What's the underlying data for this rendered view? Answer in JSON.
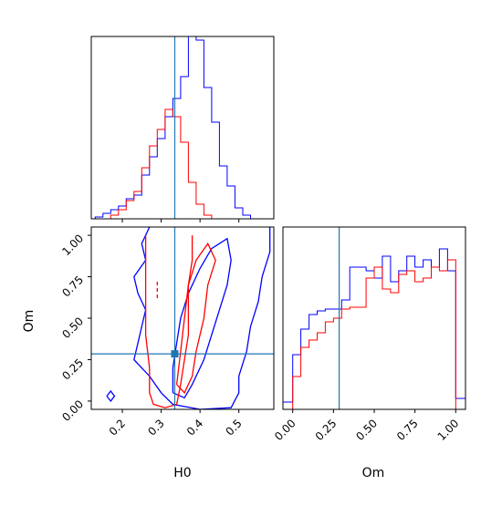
{
  "chart_data": {
    "type": "corner",
    "parameters": [
      "H0",
      "Om"
    ],
    "truth": {
      "H0": 0.335,
      "Om": 0.285
    },
    "truth_color": "#1f77b4",
    "series_colors": {
      "blue": "#0000ff",
      "red": "#ff0000"
    },
    "grid": false,
    "panels": [
      {
        "id": "H0-marginal",
        "type": "histogram",
        "parameter": "H0",
        "xlim": [
          0.12,
          0.59
        ],
        "ylim": [
          0,
          1.0
        ],
        "bin_edges": [
          0.11,
          0.13,
          0.15,
          0.17,
          0.19,
          0.21,
          0.23,
          0.25,
          0.27,
          0.29,
          0.31,
          0.33,
          0.35,
          0.37,
          0.39,
          0.41,
          0.43,
          0.45,
          0.47,
          0.49,
          0.51,
          0.53,
          0.55,
          0.57
        ],
        "series": [
          {
            "color": "blue",
            "values": [
              0,
              0.01,
              0.03,
              0.05,
              0.07,
              0.11,
              0.13,
              0.24,
              0.34,
              0.44,
              0.56,
              0.66,
              0.78,
              1.0,
              0.98,
              0.72,
              0.53,
              0.29,
              0.18,
              0.06,
              0.02,
              0,
              0
            ]
          },
          {
            "color": "red",
            "values": [
              0,
              0,
              0,
              0.02,
              0.05,
              0.1,
              0.15,
              0.28,
              0.4,
              0.49,
              0.6,
              0.56,
              0.42,
              0.2,
              0.08,
              0.02,
              0,
              0,
              0,
              0,
              0,
              0,
              0
            ]
          }
        ]
      },
      {
        "id": "H0-Om-joint",
        "type": "contour",
        "x_parameter": "H0",
        "y_parameter": "Om",
        "xlim": [
          0.12,
          0.59
        ],
        "ylim": [
          -0.05,
          1.05
        ],
        "x_ticks": [
          "0.2",
          "0.3",
          "0.4",
          "0.5"
        ],
        "x_tick_values": [
          0.2,
          0.3,
          0.4,
          0.5
        ],
        "y_ticks": [
          "0.00",
          "0.25",
          "0.50",
          "0.75",
          "1.00"
        ],
        "y_tick_values": [
          0.0,
          0.25,
          0.5,
          0.75,
          1.0
        ],
        "xlabel": "H0",
        "ylabel": "Om",
        "contours": [
          {
            "color": "blue",
            "level": "outer",
            "points": [
              [
                0.27,
                1.05
              ],
              [
                0.25,
                0.95
              ],
              [
                0.26,
                0.85
              ],
              [
                0.23,
                0.75
              ],
              [
                0.24,
                0.65
              ],
              [
                0.26,
                0.55
              ],
              [
                0.25,
                0.45
              ],
              [
                0.24,
                0.35
              ],
              [
                0.23,
                0.25
              ],
              [
                0.27,
                0.15
              ],
              [
                0.3,
                0.05
              ],
              [
                0.33,
                -0.02
              ],
              [
                0.4,
                -0.05
              ],
              [
                0.48,
                -0.04
              ],
              [
                0.5,
                0.05
              ],
              [
                0.5,
                0.15
              ],
              [
                0.52,
                0.3
              ],
              [
                0.53,
                0.45
              ],
              [
                0.55,
                0.6
              ],
              [
                0.56,
                0.75
              ],
              [
                0.58,
                0.9
              ],
              [
                0.58,
                1.05
              ]
            ]
          },
          {
            "color": "blue",
            "level": "inner",
            "points": [
              [
                0.33,
                0.05
              ],
              [
                0.33,
                0.2
              ],
              [
                0.34,
                0.35
              ],
              [
                0.35,
                0.5
              ],
              [
                0.37,
                0.65
              ],
              [
                0.4,
                0.8
              ],
              [
                0.43,
                0.92
              ],
              [
                0.47,
                0.98
              ],
              [
                0.48,
                0.85
              ],
              [
                0.47,
                0.7
              ],
              [
                0.45,
                0.55
              ],
              [
                0.43,
                0.4
              ],
              [
                0.41,
                0.25
              ],
              [
                0.38,
                0.1
              ],
              [
                0.36,
                0.02
              ],
              [
                0.33,
                0.05
              ]
            ]
          },
          {
            "color": "blue",
            "level": "dot",
            "points": [
              [
                0.16,
                0.03
              ],
              [
                0.17,
                0.06
              ],
              [
                0.18,
                0.03
              ],
              [
                0.17,
                0.0
              ],
              [
                0.16,
                0.03
              ]
            ]
          },
          {
            "color": "red",
            "level": "outer",
            "points": [
              [
                0.26,
                1.0
              ],
              [
                0.26,
                0.8
              ],
              [
                0.26,
                0.6
              ],
              [
                0.26,
                0.4
              ],
              [
                0.27,
                0.2
              ],
              [
                0.27,
                0.05
              ],
              [
                0.28,
                -0.02
              ],
              [
                0.31,
                -0.04
              ],
              [
                0.34,
                -0.02
              ],
              [
                0.35,
                0.1
              ],
              [
                0.36,
                0.25
              ],
              [
                0.37,
                0.4
              ],
              [
                0.37,
                0.55
              ],
              [
                0.37,
                0.7
              ],
              [
                0.38,
                0.85
              ],
              [
                0.38,
                1.0
              ]
            ]
          },
          {
            "color": "red",
            "level": "inner",
            "points": [
              [
                0.34,
                0.1
              ],
              [
                0.35,
                0.3
              ],
              [
                0.36,
                0.5
              ],
              [
                0.37,
                0.7
              ],
              [
                0.39,
                0.85
              ],
              [
                0.42,
                0.95
              ],
              [
                0.44,
                0.85
              ],
              [
                0.42,
                0.7
              ],
              [
                0.41,
                0.5
              ],
              [
                0.39,
                0.3
              ],
              [
                0.38,
                0.15
              ],
              [
                0.36,
                0.05
              ],
              [
                0.34,
                0.1
              ]
            ]
          }
        ]
      },
      {
        "id": "Om-marginal",
        "type": "histogram",
        "parameter": "Om",
        "xlim": [
          -0.06,
          1.06
        ],
        "ylim": [
          0,
          1.0
        ],
        "x_ticks": [
          "0.00",
          "0.25",
          "0.50",
          "0.75",
          "1.00"
        ],
        "x_tick_values": [
          0.0,
          0.25,
          0.5,
          0.75,
          1.0
        ],
        "xlabel": "Om",
        "bin_edges": [
          -0.06,
          0.0,
          0.05,
          0.1,
          0.15,
          0.2,
          0.25,
          0.3,
          0.35,
          0.4,
          0.45,
          0.5,
          0.55,
          0.6,
          0.65,
          0.7,
          0.75,
          0.8,
          0.85,
          0.9,
          0.95,
          1.0,
          1.06
        ],
        "series": [
          {
            "color": "blue",
            "values": [
              0.04,
              0.3,
              0.44,
              0.52,
              0.54,
              0.55,
              0.55,
              0.6,
              0.78,
              0.78,
              0.76,
              0.72,
              0.84,
              0.7,
              0.76,
              0.84,
              0.78,
              0.82,
              0.78,
              0.88,
              0.76,
              0.06
            ]
          },
          {
            "color": "red",
            "values": [
              0,
              0.18,
              0.34,
              0.38,
              0.42,
              0.48,
              0.5,
              0.55,
              0.56,
              0.56,
              0.72,
              0.78,
              0.66,
              0.64,
              0.74,
              0.76,
              0.7,
              0.72,
              0.78,
              0.76,
              0.82,
              0
            ]
          }
        ]
      }
    ]
  }
}
